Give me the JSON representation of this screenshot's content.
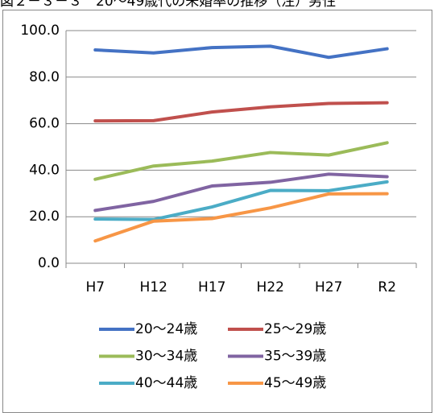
{
  "chart_data": {
    "type": "line",
    "title": "図２－３－３　20～49歳代の未婚率の推移（注）男性",
    "categories": [
      "H7",
      "H12",
      "H17",
      "H22",
      "H27",
      "R2"
    ],
    "series": [
      {
        "name": "20～24歳",
        "color": "#4472c4",
        "values": [
          91.7,
          90.4,
          92.7,
          93.3,
          88.5,
          92.2
        ]
      },
      {
        "name": "25～29歳",
        "color": "#c0504d",
        "values": [
          61.2,
          61.3,
          65.0,
          67.2,
          68.7,
          69.0
        ]
      },
      {
        "name": "30～34歳",
        "color": "#9bbb59",
        "values": [
          36.1,
          41.8,
          43.9,
          47.6,
          46.5,
          51.8
        ]
      },
      {
        "name": "35～39歳",
        "color": "#8064a2",
        "values": [
          22.7,
          26.6,
          33.2,
          34.8,
          38.3,
          37.2
        ]
      },
      {
        "name": "40～44歳",
        "color": "#4bacc6",
        "values": [
          19.0,
          18.8,
          24.2,
          31.3,
          31.2,
          35.0
        ]
      },
      {
        "name": "45～49歳",
        "color": "#f79646",
        "values": [
          9.6,
          18.1,
          19.2,
          23.8,
          29.8,
          29.9
        ]
      }
    ],
    "ylim": [
      0,
      100
    ],
    "yticks": [
      {
        "value": 0,
        "label": "0.0"
      },
      {
        "value": 20,
        "label": "20.0"
      },
      {
        "value": 40,
        "label": "40.0"
      },
      {
        "value": 60,
        "label": "60.0"
      },
      {
        "value": 80,
        "label": "80.0"
      },
      {
        "value": 100,
        "label": "100.0"
      }
    ],
    "grid": true
  }
}
